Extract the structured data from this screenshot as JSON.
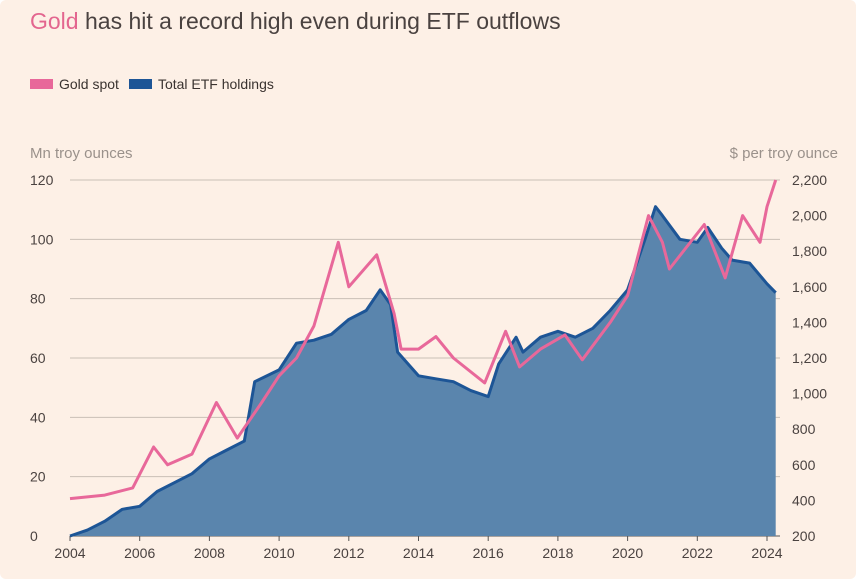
{
  "title": {
    "highlight": "Gold",
    "rest": " has hit a record high even during ETF outflows"
  },
  "legend": [
    {
      "label": "Gold spot",
      "color": "#e8689a"
    },
    {
      "label": "Total ETF holdings",
      "color": "#1d5596"
    }
  ],
  "chart_data": {
    "type": "area",
    "title": "Gold has hit a record high even during ETF outflows",
    "ylabel_left": "Mn troy ounces",
    "ylabel_right": "$ per troy ounce",
    "xlim": [
      2004,
      2024.3
    ],
    "ylim_left": [
      0,
      120
    ],
    "ylim_right": [
      200,
      2200
    ],
    "x_ticks": [
      "2004",
      "2006",
      "2008",
      "2010",
      "2012",
      "2014",
      "2016",
      "2018",
      "2020",
      "2022",
      "2024"
    ],
    "y_ticks_left": [
      "0",
      "20",
      "40",
      "60",
      "80",
      "100",
      "120"
    ],
    "y_ticks_right": [
      "200",
      "400",
      "600",
      "800",
      "1,000",
      "1,200",
      "1,400",
      "1,600",
      "1,800",
      "2,000",
      "2,200"
    ],
    "grid": true,
    "legend_position": "top-left",
    "series": [
      {
        "name": "Total ETF holdings",
        "axis": "left",
        "style": "area",
        "x": [
          2004,
          2004.5,
          2005,
          2005.5,
          2006,
          2006.5,
          2007,
          2007.5,
          2008,
          2008.5,
          2009,
          2009.3,
          2010,
          2010.5,
          2011,
          2011.5,
          2012,
          2012.5,
          2012.9,
          2013.2,
          2013.4,
          2014,
          2014.5,
          2015,
          2015.5,
          2016,
          2016.3,
          2016.8,
          2017,
          2017.5,
          2018,
          2018.5,
          2019,
          2019.5,
          2020,
          2020.5,
          2020.8,
          2021,
          2021.5,
          2022,
          2022.3,
          2022.7,
          2023,
          2023.5,
          2024,
          2024.25
        ],
        "y": [
          0,
          2,
          5,
          9,
          10,
          15,
          18,
          21,
          26,
          29,
          32,
          52,
          56,
          65,
          66,
          68,
          73,
          76,
          83,
          78,
          62,
          54,
          53,
          52,
          49,
          47,
          58,
          67,
          62,
          67,
          69,
          67,
          70,
          76,
          83,
          100,
          111,
          108,
          100,
          99,
          104,
          97,
          93,
          92,
          85,
          82
        ]
      },
      {
        "name": "Gold spot",
        "axis": "right",
        "style": "line",
        "x": [
          2004,
          2005,
          2005.8,
          2006.4,
          2006.8,
          2007.5,
          2008.2,
          2008.8,
          2009.5,
          2010,
          2010.5,
          2011,
          2011.7,
          2012,
          2012.8,
          2013.3,
          2013.5,
          2014,
          2014.5,
          2015,
          2015.9,
          2016.5,
          2016.9,
          2017.5,
          2018.2,
          2018.7,
          2019.5,
          2020,
          2020.6,
          2021,
          2021.2,
          2022.2,
          2022.8,
          2023.3,
          2023.8,
          2024,
          2024.25
        ],
        "y": [
          410,
          430,
          470,
          700,
          600,
          660,
          950,
          750,
          950,
          1100,
          1200,
          1380,
          1850,
          1600,
          1780,
          1450,
          1250,
          1250,
          1320,
          1200,
          1060,
          1350,
          1150,
          1250,
          1330,
          1190,
          1400,
          1550,
          2000,
          1850,
          1700,
          1950,
          1650,
          2000,
          1850,
          2050,
          2200
        ]
      }
    ]
  }
}
